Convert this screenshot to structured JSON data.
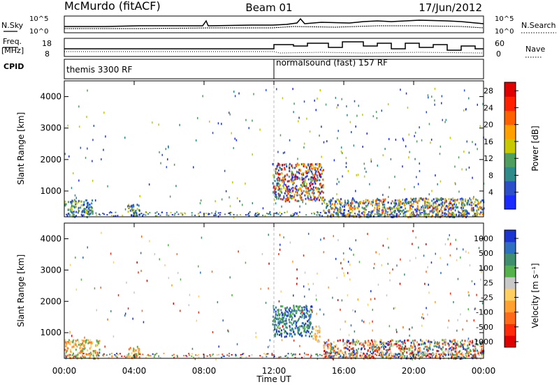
{
  "header": {
    "station": "McMurdo (fitACF)",
    "beam": "Beam 01",
    "date": "17/Jun/2012"
  },
  "status_panel": {
    "n_sky_label": "N.Sky",
    "n_sky_ticks": [
      "10^5",
      "10^0"
    ],
    "n_search_label": "N.Search",
    "n_search_ticks": [
      "10^5",
      "10^0"
    ],
    "freq_label": "Freq.",
    "freq_unit": "[MHz]",
    "freq_ticks": [
      "18",
      "8"
    ],
    "nave_label": "Nave",
    "nave_ticks": [
      "60",
      "0"
    ],
    "cpid_label": "CPID",
    "cpid_segments": [
      {
        "label": "themis 3300 RF",
        "start_hour": 0,
        "end_hour": 12.0
      },
      {
        "label": "normalsound (fast) 157 RF",
        "start_hour": 12.0,
        "end_hour": 24
      }
    ]
  },
  "chart_data": [
    {
      "type": "heatmap",
      "name": "power",
      "ylabel": "Slant Range [km]",
      "ylim": [
        180,
        4500
      ],
      "yticks": [
        1000,
        2000,
        3000,
        4000
      ],
      "xlim": [
        0,
        24
      ],
      "xticks": [
        "00:00",
        "04:00",
        "08:00",
        "12:00",
        "16:00",
        "20:00",
        "00:00"
      ],
      "colorbar": {
        "label": "Power [dB]",
        "tick_labels": [
          "4",
          "8",
          "12",
          "16",
          "20",
          "24",
          "28"
        ],
        "range": [
          0,
          30
        ],
        "colors": [
          "#1b2bff",
          "#2a4fc8",
          "#2f8a8a",
          "#4f9d5f",
          "#c8c800",
          "#ffa000",
          "#ff6000",
          "#ff2000",
          "#e00000"
        ]
      },
      "features": [
        {
          "hours": [
            0,
            1.6
          ],
          "range_km": [
            200,
            750
          ],
          "level": "low-mid"
        },
        {
          "hours": [
            3.6,
            4.3
          ],
          "range_km": [
            200,
            600
          ],
          "level": "low-mid"
        },
        {
          "hours": [
            11.9,
            14.8
          ],
          "range_km": [
            700,
            1900
          ],
          "level": "high"
        },
        {
          "hours": [
            14.8,
            24
          ],
          "range_km": [
            200,
            800
          ],
          "level": "mid"
        }
      ]
    },
    {
      "type": "heatmap",
      "name": "velocity",
      "ylabel": "Slant Range [km]",
      "ylim": [
        180,
        4500
      ],
      "yticks": [
        1000,
        2000,
        3000,
        4000
      ],
      "xlim": [
        0,
        24
      ],
      "xticks": [
        "00:00",
        "04:00",
        "08:00",
        "12:00",
        "16:00",
        "20:00",
        "00:00"
      ],
      "xlabel": "Time UT",
      "colorbar": {
        "label": "Velocity [m s⁻¹]",
        "tick_labels": [
          "1000",
          "500",
          "100",
          "25",
          "-25",
          "-100",
          "-500",
          "-1000"
        ],
        "colors": [
          "#1c35d0",
          "#2f6fbf",
          "#3f8f6f",
          "#55b24a",
          "#c8c8c8",
          "#ffd060",
          "#ffa030",
          "#ff6a1a",
          "#ff2a0a",
          "#e00000"
        ]
      },
      "features": [
        {
          "hours": [
            0,
            2.0
          ],
          "range_km": [
            200,
            800
          ],
          "level": "orange"
        },
        {
          "hours": [
            3.6,
            4.3
          ],
          "range_km": [
            200,
            600
          ],
          "level": "orange"
        },
        {
          "hours": [
            11.9,
            14.2
          ],
          "range_km": [
            900,
            1900
          ],
          "level": "green"
        },
        {
          "hours": [
            14.2,
            14.6
          ],
          "range_km": [
            700,
            1300
          ],
          "level": "yellow"
        },
        {
          "hours": [
            14.8,
            24
          ],
          "range_km": [
            200,
            800
          ],
          "level": "mixed"
        }
      ]
    }
  ]
}
